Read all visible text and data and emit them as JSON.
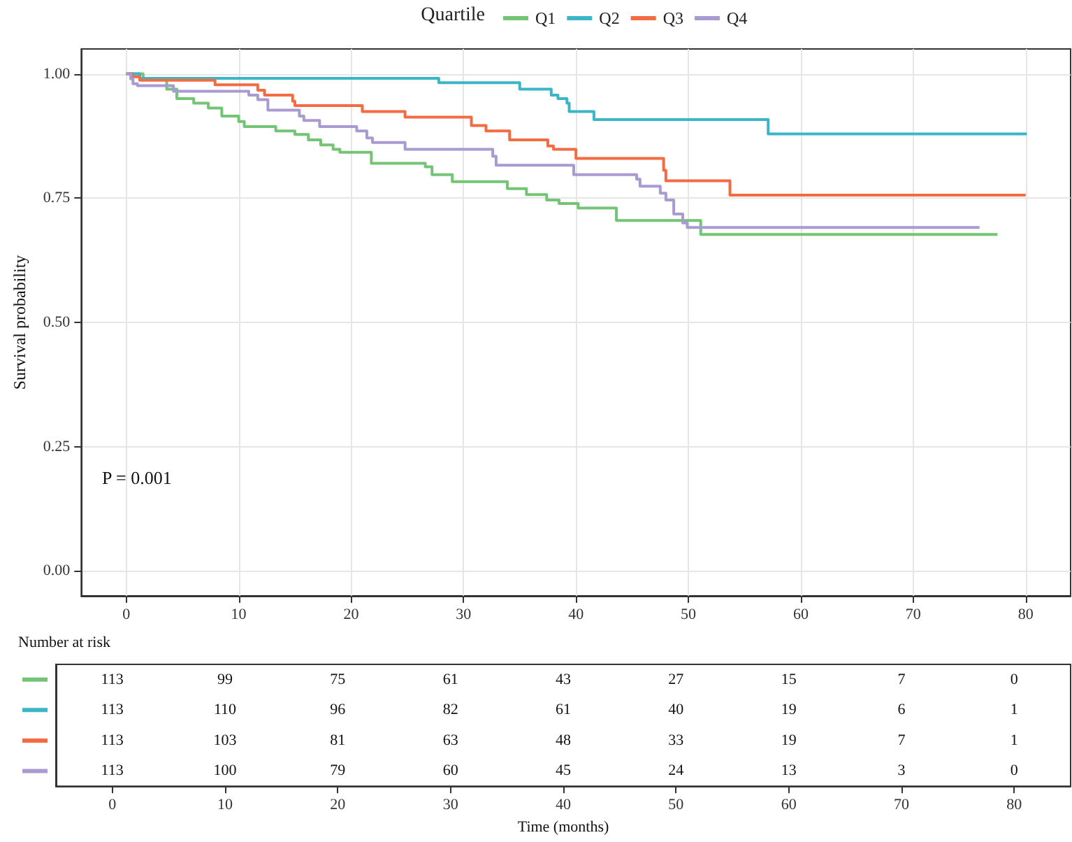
{
  "chart_data": [
    {
      "type": "step",
      "ylabel": "Survival probability",
      "legend_title": "Quartile",
      "legend": "top",
      "grid": true,
      "annotations": [
        "P = 0.001"
      ],
      "xlim": [
        -4,
        84
      ],
      "xticks": [
        0,
        10,
        20,
        30,
        40,
        50,
        60,
        70,
        80
      ],
      "ylim": [
        -0.05,
        1.05
      ],
      "yticks": [
        {
          "value": 0,
          "label": "0.00"
        },
        {
          "value": 0.25,
          "label": "0.25"
        },
        {
          "value": 0.5,
          "label": "0.50"
        },
        {
          "value": 0.75,
          "label": "0.75"
        },
        {
          "value": 1,
          "label": "1.00"
        }
      ],
      "series": [
        {
          "name": "Q1",
          "color": "#74c476",
          "x": [
            0,
            1.5,
            3.6,
            4.5,
            6,
            7.3,
            8.5,
            10,
            10.5,
            13.3,
            15,
            16.2,
            17.3,
            18.4,
            19,
            21.8,
            26.6,
            27.2,
            29,
            33.9,
            35.6,
            37.4,
            38.5,
            40.2,
            43.6,
            51.1,
            77.5
          ],
          "values": [
            1,
            0.991,
            0.969,
            0.95,
            0.941,
            0.931,
            0.915,
            0.904,
            0.894,
            0.885,
            0.878,
            0.867,
            0.857,
            0.848,
            0.842,
            0.82,
            0.813,
            0.797,
            0.783,
            0.769,
            0.757,
            0.746,
            0.739,
            0.73,
            0.705,
            0.677,
            0.677
          ]
        },
        {
          "name": "Q2",
          "color": "#3cb6c6",
          "x": [
            0,
            1.2,
            27.8,
            35,
            37.8,
            38.4,
            39.2,
            39.4,
            41.6,
            57.1,
            80.1
          ],
          "values": [
            1,
            0.991,
            0.982,
            0.969,
            0.957,
            0.95,
            0.941,
            0.924,
            0.908,
            0.879,
            0.879
          ]
        },
        {
          "name": "Q3",
          "color": "#f26b43",
          "x": [
            0,
            0.5,
            1.2,
            7.9,
            11.7,
            12.3,
            14.8,
            15,
            21,
            24.8,
            30.7,
            32,
            34.1,
            37.5,
            38,
            40,
            47.8,
            48,
            53.7,
            80
          ],
          "values": [
            1,
            0.994,
            0.987,
            0.978,
            0.967,
            0.957,
            0.945,
            0.936,
            0.924,
            0.913,
            0.896,
            0.885,
            0.867,
            0.855,
            0.848,
            0.83,
            0.806,
            0.785,
            0.756,
            0.756
          ]
        },
        {
          "name": "Q4",
          "color": "#a99bd1",
          "x": [
            0,
            0.4,
            0.6,
            1,
            4.2,
            10.9,
            11.7,
            12.6,
            15.4,
            15.8,
            17.2,
            20.5,
            21.4,
            21.9,
            24.8,
            32.6,
            32.9,
            39.8,
            45.4,
            45.7,
            47.5,
            48,
            48.7,
            49.5,
            49.9,
            75.9
          ],
          "values": [
            1,
            0.99,
            0.98,
            0.976,
            0.965,
            0.957,
            0.948,
            0.927,
            0.915,
            0.906,
            0.894,
            0.885,
            0.871,
            0.862,
            0.848,
            0.834,
            0.816,
            0.797,
            0.788,
            0.774,
            0.76,
            0.746,
            0.718,
            0.7,
            0.691,
            0.691
          ]
        }
      ]
    },
    {
      "type": "heatmap",
      "title": "Number at risk",
      "xlabel": "Time (months)",
      "data_labels": true,
      "categories": [
        "0",
        "10",
        "20",
        "30",
        "40",
        "50",
        "60",
        "70",
        "80"
      ],
      "y_categories": [
        null,
        null,
        null,
        null
      ],
      "cells": [
        [
          113,
          99,
          75,
          61,
          43,
          27,
          15,
          7,
          0
        ],
        [
          113,
          110,
          96,
          82,
          61,
          40,
          19,
          6,
          1
        ],
        [
          113,
          103,
          81,
          63,
          48,
          33,
          19,
          7,
          1
        ],
        [
          113,
          100,
          79,
          60,
          45,
          24,
          13,
          3,
          0
        ]
      ]
    }
  ]
}
